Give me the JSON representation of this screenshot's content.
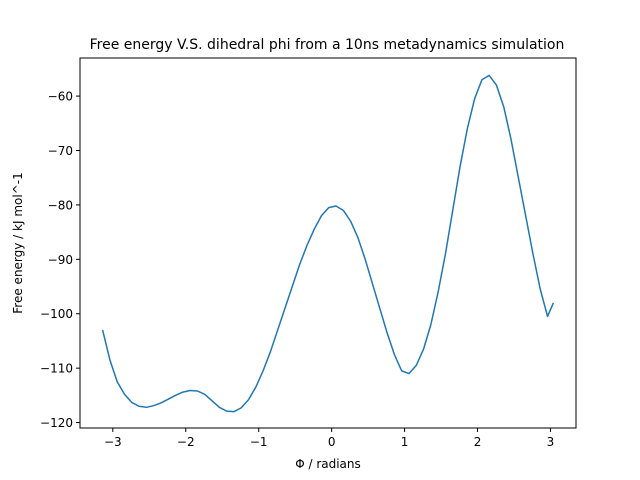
{
  "chart_data": {
    "type": "line",
    "title": "Free energy V.S. dihedral phi from a 10ns metadynamics simulation",
    "xlabel": "Φ / radians",
    "ylabel": "Free energy / kJ mol^-1",
    "xlim": [
      -3.45,
      3.35
    ],
    "ylim": [
      -121,
      -53
    ],
    "xticks": [
      -3,
      -2,
      -1,
      0,
      1,
      2,
      3
    ],
    "xtick_labels": [
      "−3",
      "−2",
      "−1",
      "0",
      "1",
      "2",
      "3"
    ],
    "yticks": [
      -120,
      -110,
      -100,
      -90,
      -80,
      -70,
      -60
    ],
    "ytick_labels": [
      "−120",
      "−110",
      "−100",
      "−90",
      "−80",
      "−70",
      "−60"
    ],
    "grid": false,
    "series": [
      {
        "color": "#1f77b4",
        "x": [
          -3.14,
          -3.04,
          -2.94,
          -2.84,
          -2.74,
          -2.64,
          -2.54,
          -2.44,
          -2.34,
          -2.24,
          -2.14,
          -2.04,
          -1.94,
          -1.84,
          -1.74,
          -1.64,
          -1.54,
          -1.44,
          -1.34,
          -1.24,
          -1.14,
          -1.04,
          -0.94,
          -0.84,
          -0.74,
          -0.64,
          -0.54,
          -0.44,
          -0.34,
          -0.24,
          -0.14,
          -0.04,
          0.06,
          0.16,
          0.26,
          0.36,
          0.46,
          0.56,
          0.66,
          0.76,
          0.86,
          0.96,
          1.06,
          1.16,
          1.26,
          1.36,
          1.46,
          1.56,
          1.66,
          1.76,
          1.86,
          1.96,
          2.06,
          2.16,
          2.26,
          2.36,
          2.46,
          2.56,
          2.66,
          2.76,
          2.86,
          2.96,
          3.04
        ],
        "y": [
          -103,
          -108.5,
          -112.5,
          -114.8,
          -116.3,
          -117.0,
          -117.2,
          -116.9,
          -116.4,
          -115.7,
          -115.0,
          -114.4,
          -114.1,
          -114.2,
          -114.8,
          -116.0,
          -117.2,
          -117.9,
          -118.0,
          -117.3,
          -115.8,
          -113.5,
          -110.5,
          -107.0,
          -103.0,
          -99.0,
          -95.0,
          -91.0,
          -87.5,
          -84.5,
          -82.0,
          -80.5,
          -80.2,
          -81.0,
          -83.0,
          -86.0,
          -90.0,
          -94.5,
          -99.0,
          -103.5,
          -107.5,
          -110.5,
          -111.0,
          -109.5,
          -106.5,
          -102.0,
          -96.0,
          -89.0,
          -81.0,
          -73.0,
          -66.0,
          -60.5,
          -57.0,
          -56.2,
          -58.0,
          -62.0,
          -68.0,
          -75.0,
          -82.0,
          -89.0,
          -95.5,
          -100.5,
          -98.0
        ]
      }
    ]
  }
}
